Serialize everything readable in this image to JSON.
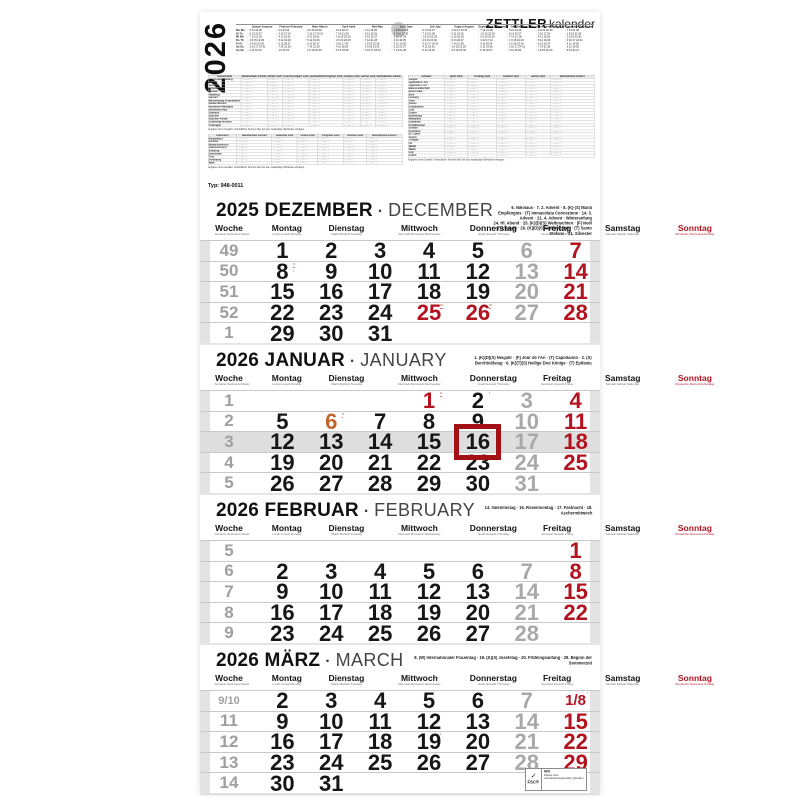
{
  "year": "2026",
  "brand": {
    "name": "ZETTLER",
    "suffix": "kalender"
  },
  "type_label": "Typ: 948-0011",
  "title_separator": "·",
  "colors": {
    "sunday_red": "#b3121f",
    "marker_red": "#a31016",
    "saturday_gray": "#a9a9a9",
    "week_gray": "#9f9f9f",
    "highlight_week_bg": "#dedede"
  },
  "year_overview": {
    "weekday_labels": [
      "Mo Mo",
      "Di Tu",
      "Mi We",
      "Do Th",
      "Fr Fr",
      "Sa Sa",
      "So Su"
    ],
    "months": [
      {
        "name": "Januar January",
        "days": [
          "5 12 19 26",
          "6 13 20 27",
          "7 14 21 28",
          "1 8 15 22 29",
          "2 9 16 23 30",
          "3 10 17 24 31",
          "4 11 18 25"
        ]
      },
      {
        "name": "Februar February",
        "days": [
          "2 9 16 23",
          "3 10 17 24",
          "4 11 18 25",
          "5 12 19 26",
          "6 13 20 27",
          "7 14 21 28",
          "1 8 15 22"
        ]
      },
      {
        "name": "März March",
        "days": [
          "2 9 16 23 30",
          "3 10 17 24 31",
          "4 11 18 25",
          "5 12 19 26",
          "6 13 20 27",
          "7 14 21 28",
          "1 8 15 22 29"
        ]
      },
      {
        "name": "April April",
        "days": [
          "6 13 20 27",
          "7 14 21 28",
          "1 8 15 22 29",
          "2 9 16 23 30",
          "3 10 17 24",
          "4 11 18 25",
          "5 12 19 26"
        ]
      },
      {
        "name": "Mai May",
        "days": [
          "4 11 18 25",
          "5 12 19 26",
          "6 13 20 27",
          "7 14 21 28",
          "1 8 15 22 29",
          "2 9 16 23 30",
          "3 10 17 24 31"
        ]
      },
      {
        "name": "Juni June",
        "days": [
          "1 8 15 22 29",
          "2 9 16 23 30",
          "3 10 17 24",
          "4 11 18 25",
          "5 12 19 26",
          "6 13 20 27",
          "7 14 21 28"
        ]
      },
      {
        "name": "Juli July",
        "days": [
          "6 13 20 27",
          "7 14 21 28",
          "1 8 15 22 29",
          "2 9 16 23 30",
          "3 10 17 24 31",
          "4 11 18 25",
          "5 12 19 26"
        ]
      },
      {
        "name": "August August",
        "days": [
          "3 10 17 24 31",
          "4 11 18 25",
          "5 12 19 26",
          "6 13 20 27",
          "7 14 21 28",
          "1 8 15 22 29",
          "2 9 16 23 30"
        ]
      },
      {
        "name": "September September",
        "days": [
          "7 14 21 28",
          "1 8 15 22 29",
          "2 9 16 23 30",
          "3 10 17 24",
          "4 11 18 25",
          "5 12 19 26",
          "6 13 20 27"
        ]
      },
      {
        "name": "Oktober October",
        "days": [
          "5 12 19 26",
          "6 13 20 27",
          "7 14 21 28",
          "1 8 15 22 29",
          "2 9 16 23 30",
          "3 10 17 24 31",
          "4 11 18 25"
        ]
      },
      {
        "name": "November November",
        "days": [
          "2 9 16 23 30",
          "3 10 17 24",
          "4 11 18 25",
          "5 12 19 26",
          "6 13 20 27",
          "7 14 21 28",
          "1 8 15 22 29"
        ]
      },
      {
        "name": "Dezember December",
        "days": [
          "7 14 21 28",
          "1 8 15 22 29",
          "2 9 16 23 30",
          "3 10 17 24 31",
          "4 11 18 25",
          "5 12 19 26",
          "6 13 20 27"
        ]
      }
    ]
  },
  "holiday_tables": {
    "placeholder": "··.··.–··.··.",
    "footnote": "Angaben ohne Gewähr. Verbindliche Termine bitte bei den zuständigen Behörden erfragen.",
    "germany": {
      "region": "Deutschland",
      "columns": [
        "Weihnachten 2025/26",
        "Winter 2026",
        "Ostern/Frühjahr 2026",
        "Himmelfahrt/Pfingsten 2026",
        "Sommer 2026",
        "Herbst 2026",
        "Weihnachten 2026/27"
      ],
      "rows": [
        "Baden-Württemberg",
        "Bayern",
        "Berlin",
        "Brandenburg",
        "Bremen",
        "Hamburg",
        "Hessen",
        "Mecklenburg-Vorpommern",
        "Niedersachsen",
        "Nordrhein-Westfalen",
        "Rheinland-Pfalz",
        "Saarland",
        "Sachsen",
        "Sachsen-Anhalt",
        "Schleswig-Holstein",
        "Thüringen"
      ]
    },
    "austria": {
      "region": "Österreich",
      "columns": [
        "Weihnachten 2025/26",
        "Semester 2026",
        "Ostern 2026",
        "Pfingsten 2026",
        "Sommer 2026",
        "Weihnachten 2026/27"
      ],
      "rows": [
        "Burgenland",
        "Kärnten",
        "Niederösterreich",
        "Oberösterreich",
        "Salzburg",
        "Steiermark",
        "Tirol",
        "Vorarlberg",
        "Wien"
      ]
    },
    "switzerland": {
      "region": "Schweiz",
      "columns": [
        "Sport 2026",
        "Frühling 2026",
        "Sommer 2026",
        "Herbst 2026",
        "Weihnachten 2026/27"
      ],
      "rows": [
        "Aargau",
        "Appenzell A. Rh.",
        "Appenzell I. Rh.",
        "Basel-Landschaft",
        "Basel-Stadt",
        "Bern",
        "Freiburg",
        "Genf",
        "Glarus",
        "Graubünden",
        "Jura",
        "Luzern",
        "Neuenburg",
        "Nidwalden",
        "Obwalden",
        "Schaffhausen",
        "Schwyz",
        "Solothurn",
        "St. Gallen",
        "Tessin",
        "Thurgau",
        "Uri",
        "Waadt",
        "Wallis",
        "Zug",
        "Zürich"
      ]
    }
  },
  "weekday_header": [
    {
      "n": "Woche",
      "s": "Semaine Settimana Week"
    },
    {
      "n": "Montag",
      "s": "Lundi Lunedì Monday"
    },
    {
      "n": "Dienstag",
      "s": "Mardi Martedì Tuesday"
    },
    {
      "n": "Mittwoch",
      "s": "Mercredi Mercoledì Wednesday"
    },
    {
      "n": "Donnerstag",
      "s": "Jeudi Giovedì Thursday"
    },
    {
      "n": "Freitag",
      "s": "Vendredi Venerdì Friday"
    },
    {
      "n": "Samstag",
      "s": "Samedi Sabato Saturday"
    },
    {
      "n": "Sonntag",
      "s": "Dimanche Domenica Sunday",
      "red": true
    }
  ],
  "fsc": {
    "l1": "MIX",
    "l2": "Papier aus verantwortungsvollen Quellen",
    "l3": "FSC®"
  },
  "months": [
    {
      "id": "december-2025",
      "title": "2025 DEZEMBER",
      "title_en": "DECEMBER",
      "note": "6. Nikolaus · 7. 2. Advent · 8. (K)·(S) Mariä Empfängnis · (T) Immacolata Concezione · 14. 3. Advent · 21. 4. Advent · Winteranfang\n24. Hl. Abend · 25. (K)(D)(S) Weihnachten · (F) Noël · (T) Natale · 26. (K)(D)(S) Weihnachten · (T) Santo Stefano · 31. Silvester",
      "weeks": [
        {
          "wk": "49",
          "days": [
            [
              "1",
              "w"
            ],
            [
              "2",
              "w"
            ],
            [
              "3",
              "w"
            ],
            [
              "4",
              "w"
            ],
            [
              "5",
              "w"
            ],
            [
              "6",
              "s"
            ],
            [
              "7",
              "r"
            ]
          ]
        },
        {
          "wk": "50",
          "days": [
            [
              "8",
              "w",
              [
                "••",
                "••",
                "•"
              ]
            ],
            [
              "9",
              "w"
            ],
            [
              "10",
              "w"
            ],
            [
              "11",
              "w"
            ],
            [
              "12",
              "w"
            ],
            [
              "13",
              "s"
            ],
            [
              "14",
              "r"
            ]
          ]
        },
        {
          "wk": "51",
          "days": [
            [
              "15",
              "w"
            ],
            [
              "16",
              "w"
            ],
            [
              "17",
              "w"
            ],
            [
              "18",
              "w"
            ],
            [
              "19",
              "w"
            ],
            [
              "20",
              "s"
            ],
            [
              "21",
              "r"
            ]
          ]
        },
        {
          "wk": "52",
          "days": [
            [
              "22",
              "w"
            ],
            [
              "23",
              "w"
            ],
            [
              "24",
              "w"
            ],
            [
              "25",
              "r",
              [
                "•••",
                "•••"
              ]
            ],
            [
              "26",
              "r",
              [
                "•••",
                "••"
              ]
            ],
            [
              "27",
              "s"
            ],
            [
              "28",
              "r"
            ]
          ]
        },
        {
          "wk": "1",
          "days": [
            [
              "29",
              "w"
            ],
            [
              "30",
              "w"
            ],
            [
              "31",
              "w"
            ],
            [
              "",
              "e"
            ],
            [
              "",
              "e"
            ],
            [
              "",
              "e"
            ],
            [
              "",
              "e"
            ]
          ]
        }
      ]
    },
    {
      "id": "january-2026",
      "title": "2026 JANUAR",
      "title_en": "JANUARY",
      "note": "1. (K)(D)(S) Neujahr · (F) Jour de l'An · (T) Capodanno · 2. (S) Berchtoldstag · 6. (K)(T)(S) Heilige Drei Könige · (T) Epifania",
      "highlight_week": 2,
      "marker": {
        "week": 2,
        "day": 4
      },
      "weeks": [
        {
          "wk": "1",
          "days": [
            [
              "",
              "e"
            ],
            [
              "",
              "e"
            ],
            [
              "",
              "e"
            ],
            [
              "1",
              "r",
              [
                "••",
                "••"
              ]
            ],
            [
              "2",
              "w",
              [
                "•"
              ]
            ],
            [
              "3",
              "s"
            ],
            [
              "4",
              "r"
            ]
          ]
        },
        {
          "wk": "2",
          "days": [
            [
              "5",
              "w"
            ],
            [
              "6",
              "o",
              [
                "••",
                "•"
              ]
            ],
            [
              "7",
              "w"
            ],
            [
              "8",
              "w"
            ],
            [
              "9",
              "w"
            ],
            [
              "10",
              "s"
            ],
            [
              "11",
              "r"
            ]
          ]
        },
        {
          "wk": "3",
          "days": [
            [
              "12",
              "w"
            ],
            [
              "13",
              "w"
            ],
            [
              "14",
              "w"
            ],
            [
              "15",
              "w"
            ],
            [
              "16",
              "w"
            ],
            [
              "17",
              "s"
            ],
            [
              "18",
              "r"
            ]
          ]
        },
        {
          "wk": "4",
          "days": [
            [
              "19",
              "w"
            ],
            [
              "20",
              "w"
            ],
            [
              "21",
              "w"
            ],
            [
              "22",
              "w"
            ],
            [
              "23",
              "w"
            ],
            [
              "24",
              "s"
            ],
            [
              "25",
              "r"
            ]
          ]
        },
        {
          "wk": "5",
          "days": [
            [
              "26",
              "w"
            ],
            [
              "27",
              "w"
            ],
            [
              "28",
              "w"
            ],
            [
              "29",
              "w"
            ],
            [
              "30",
              "w"
            ],
            [
              "31",
              "s"
            ],
            [
              "",
              "e"
            ]
          ]
        }
      ]
    },
    {
      "id": "february-2026",
      "title": "2026 FEBRUAR",
      "title_en": "FEBRUARY",
      "note": "14. Valentinstag · 16. Rosenmontag · 17. Fastnacht · 18. Aschermittwoch",
      "weeks": [
        {
          "wk": "5",
          "days": [
            [
              "",
              "e"
            ],
            [
              "",
              "e"
            ],
            [
              "",
              "e"
            ],
            [
              "",
              "e"
            ],
            [
              "",
              "e"
            ],
            [
              "",
              "e"
            ],
            [
              "1",
              "r"
            ]
          ]
        },
        {
          "wk": "6",
          "days": [
            [
              "2",
              "w"
            ],
            [
              "3",
              "w"
            ],
            [
              "4",
              "w"
            ],
            [
              "5",
              "w"
            ],
            [
              "6",
              "w"
            ],
            [
              "7",
              "s"
            ],
            [
              "8",
              "r"
            ]
          ]
        },
        {
          "wk": "7",
          "days": [
            [
              "9",
              "w"
            ],
            [
              "10",
              "w"
            ],
            [
              "11",
              "w"
            ],
            [
              "12",
              "w"
            ],
            [
              "13",
              "w"
            ],
            [
              "14",
              "s"
            ],
            [
              "15",
              "r"
            ]
          ]
        },
        {
          "wk": "8",
          "days": [
            [
              "16",
              "w"
            ],
            [
              "17",
              "w"
            ],
            [
              "18",
              "w"
            ],
            [
              "19",
              "w"
            ],
            [
              "20",
              "w"
            ],
            [
              "21",
              "s"
            ],
            [
              "22",
              "r"
            ]
          ]
        },
        {
          "wk": "9",
          "days": [
            [
              "23",
              "w"
            ],
            [
              "24",
              "w"
            ],
            [
              "25",
              "w"
            ],
            [
              "26",
              "w"
            ],
            [
              "27",
              "w"
            ],
            [
              "28",
              "s"
            ],
            [
              "",
              "e"
            ]
          ]
        }
      ]
    },
    {
      "id": "march-2026",
      "title": "2026 MÄRZ",
      "title_en": "MARCH",
      "note": "8. (W) Internationaler Frauentag · 19. (K)(S) Josefstag · 20. Frühlingsanfang · 29. Beginn der Sommerzeit",
      "has_fsc_label": true,
      "weeks": [
        {
          "wk": "9/10",
          "days": [
            [
              "2",
              "w"
            ],
            [
              "3",
              "w"
            ],
            [
              "4",
              "w"
            ],
            [
              "5",
              "w"
            ],
            [
              "6",
              "w"
            ],
            [
              "7",
              "s"
            ],
            [
              "1/8",
              "r",
              [
                "•"
              ]
            ]
          ]
        },
        {
          "wk": "11",
          "days": [
            [
              "9",
              "w"
            ],
            [
              "10",
              "w"
            ],
            [
              "11",
              "w"
            ],
            [
              "12",
              "w"
            ],
            [
              "13",
              "w"
            ],
            [
              "14",
              "s"
            ],
            [
              "15",
              "r"
            ]
          ]
        },
        {
          "wk": "12",
          "days": [
            [
              "16",
              "w"
            ],
            [
              "17",
              "w"
            ],
            [
              "18",
              "w"
            ],
            [
              "19",
              "w",
              [
                "•"
              ]
            ],
            [
              "20",
              "w"
            ],
            [
              "21",
              "s"
            ],
            [
              "22",
              "r"
            ]
          ]
        },
        {
          "wk": "13",
          "days": [
            [
              "23",
              "w"
            ],
            [
              "24",
              "w"
            ],
            [
              "25",
              "w"
            ],
            [
              "26",
              "w"
            ],
            [
              "27",
              "w"
            ],
            [
              "28",
              "s"
            ],
            [
              "29",
              "r"
            ]
          ]
        },
        {
          "wk": "14",
          "days": [
            [
              "30",
              "w"
            ],
            [
              "31",
              "w"
            ],
            [
              "",
              "e"
            ],
            [
              "",
              "e"
            ],
            [
              "",
              "e"
            ],
            [
              "",
              "e"
            ],
            [
              "",
              "e"
            ]
          ]
        }
      ]
    }
  ]
}
